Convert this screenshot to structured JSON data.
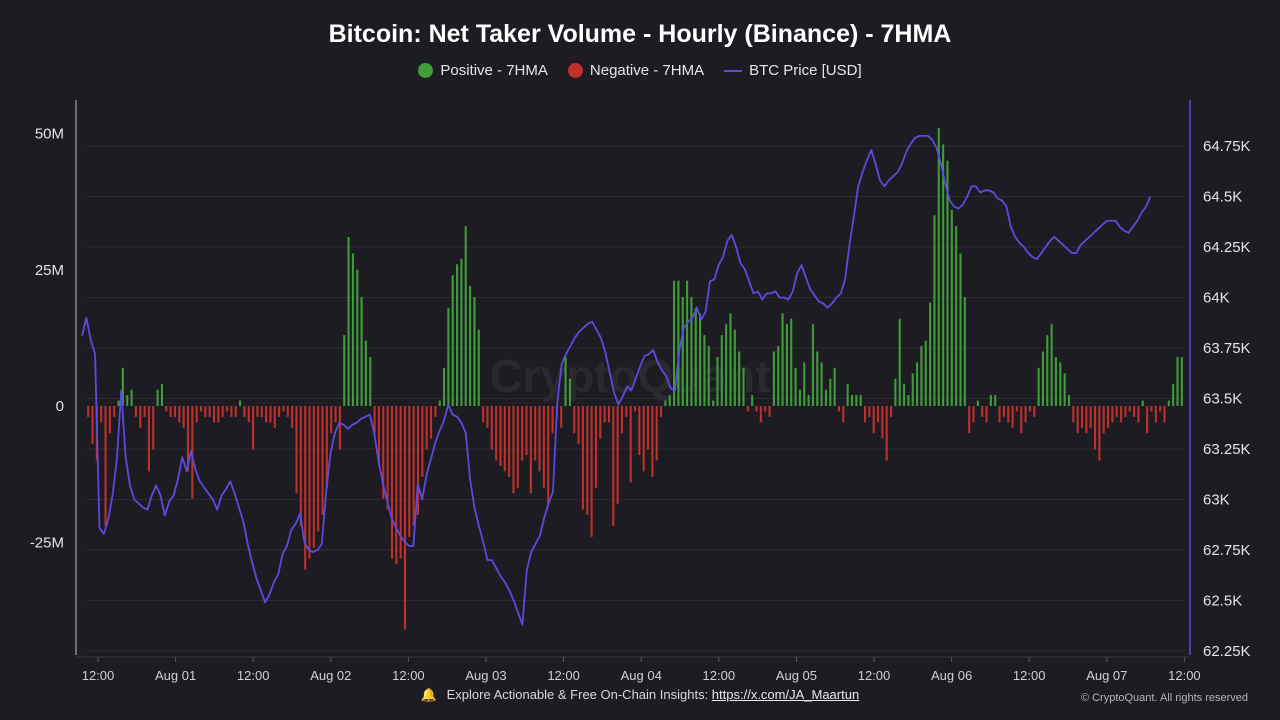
{
  "title": "Bitcoin: Net Taker Volume - Hourly (Binance) - 7HMA",
  "legend": {
    "positive": "Positive - 7HMA",
    "negative": "Negative - 7HMA",
    "price": "BTC Price [USD]"
  },
  "colors": {
    "positive": "#3f9d3a",
    "negative": "#c0302c",
    "price": "#5b4be0",
    "background": "#1d1c22",
    "grid": "#2c2b32"
  },
  "icons": {
    "bell": "bell-icon"
  },
  "footer": {
    "text": "Explore Actionable & Free On-Chain Insights: ",
    "link": "https://x.com/JA_Maartun",
    "copyright": "© CryptoQuant. All rights reserved"
  },
  "watermark": "CryptoQuant",
  "chart_data": {
    "type": "bar",
    "title": "Bitcoin: Net Taker Volume - Hourly (Binance) - 7HMA",
    "x_ticks": [
      "12:00",
      "Aug 01",
      "12:00",
      "Aug 02",
      "12:00",
      "Aug 03",
      "12:00",
      "Aug 04",
      "12:00",
      "Aug 05",
      "12:00",
      "Aug 06",
      "12:00",
      "Aug 07",
      "12:00"
    ],
    "x_range_hours": [
      0,
      171
    ],
    "y_left": {
      "ticks": [
        "50M",
        "25M",
        "0",
        "-25M"
      ],
      "tick_values": [
        50,
        25,
        0,
        -25
      ],
      "unit": "M",
      "range": [
        -45,
        55
      ]
    },
    "y_right": {
      "ticks": [
        "64.75K",
        "64.5K",
        "64.25K",
        "64K",
        "63.75K",
        "63.5K",
        "63.25K",
        "63K",
        "62.75K",
        "62.5K",
        "62.25K"
      ],
      "tick_values": [
        64.75,
        64.5,
        64.25,
        64,
        63.75,
        63.5,
        63.25,
        63,
        62.75,
        62.5,
        62.25
      ],
      "unit": "K USD",
      "range": [
        62.25,
        65.0
      ]
    },
    "grid": true,
    "legend_position": "top-center",
    "series": [
      {
        "name": "Net Taker Volume 7HMA",
        "unit": "M",
        "values": [
          -2,
          -7,
          -10,
          -3,
          -22,
          -5,
          -2,
          1,
          7,
          2,
          3,
          -2,
          -4,
          -2,
          -12,
          -8,
          3,
          4,
          -1,
          -2,
          -2,
          -3,
          -4,
          -12,
          -17,
          -3,
          -1,
          -2,
          -2,
          -3,
          -3,
          -2,
          -1,
          -2,
          -2,
          1,
          -2,
          -3,
          -8,
          -2,
          -2,
          -3,
          -3,
          -4,
          -2,
          -1,
          -2,
          -4,
          -16,
          -22,
          -30,
          -28,
          -26,
          -23,
          -20,
          -15,
          -5,
          -3,
          -8,
          13,
          31,
          28,
          25,
          20,
          12,
          9,
          -5,
          -11,
          -17,
          -19,
          -28,
          -29,
          -28,
          -41,
          -24,
          -22,
          -20,
          -13,
          -8,
          -6,
          -2,
          1,
          7,
          18,
          24,
          26,
          27,
          33,
          22,
          20,
          14,
          -3,
          -4,
          -8,
          -10,
          -11,
          -12,
          -13,
          -16,
          -15,
          -10,
          -9,
          -16,
          -10,
          -12,
          -15,
          -18,
          -5,
          -2,
          -4,
          9,
          5,
          -5,
          -7,
          -19,
          -20,
          -24,
          -15,
          -6,
          -3,
          -3,
          -22,
          -18,
          -5,
          -2,
          -14,
          -1,
          -9,
          -12,
          -8,
          -13,
          -10,
          -2,
          1,
          2,
          23,
          23,
          20,
          23,
          20,
          18,
          17,
          13,
          11,
          1,
          9,
          13,
          15,
          17,
          14,
          10,
          7,
          -1,
          2,
          -1,
          -3,
          -1,
          -2,
          10,
          11,
          17,
          15,
          16,
          7,
          3,
          8,
          2,
          15,
          10,
          8,
          3,
          5,
          7,
          -1,
          -3,
          4,
          2,
          2,
          2,
          -3,
          -2,
          -5,
          -3,
          -6,
          -10,
          -2,
          5,
          16,
          4,
          2,
          6,
          8,
          11,
          12,
          19,
          35,
          51,
          48,
          45,
          36,
          33,
          28,
          20,
          -5,
          -3,
          1,
          -2,
          -3,
          2,
          2,
          -3,
          -2,
          -3,
          -4,
          -1,
          -5,
          -3,
          -1,
          -2,
          7,
          10,
          13,
          15,
          9,
          8,
          6,
          2,
          -3,
          -5,
          -4,
          -5,
          -4,
          -8,
          -10,
          -5,
          -4,
          -3,
          -2,
          -3,
          -2,
          -1,
          -2,
          -3,
          1,
          -5,
          -1,
          -3,
          -1,
          -3,
          1,
          4,
          9,
          9
        ]
      },
      {
        "name": "BTC Price [USD]",
        "unit": "K USD",
        "values": [
          63.81,
          63.9,
          63.79,
          63.72,
          62.86,
          62.83,
          62.9,
          63.02,
          63.2,
          63.54,
          63.21,
          63.07,
          63.0,
          62.98,
          62.96,
          62.95,
          63.02,
          63.07,
          63.02,
          62.92,
          62.99,
          63.02,
          63.1,
          63.21,
          63.14,
          63.24,
          63.15,
          63.09,
          63.06,
          63.03,
          63.0,
          62.95,
          63.02,
          63.05,
          63.09,
          63.03,
          62.96,
          62.89,
          62.78,
          62.69,
          62.61,
          62.55,
          62.49,
          62.53,
          62.59,
          62.63,
          62.73,
          62.77,
          62.85,
          62.88,
          62.93,
          62.79,
          62.75,
          62.74,
          62.75,
          62.78,
          63.04,
          63.23,
          63.33,
          63.38,
          63.37,
          63.35,
          63.37,
          63.38,
          63.4,
          63.41,
          63.42,
          63.33,
          63.19,
          63.08,
          62.99,
          62.91,
          62.86,
          62.82,
          62.79,
          62.77,
          62.77,
          63.08,
          63.0,
          63.12,
          63.2,
          63.28,
          63.34,
          63.39,
          63.47,
          63.42,
          63.41,
          63.38,
          63.33,
          63.1,
          62.96,
          62.87,
          62.79,
          62.7,
          62.7,
          62.66,
          62.62,
          62.59,
          62.55,
          62.5,
          62.44,
          62.38,
          62.65,
          62.74,
          62.78,
          62.82,
          62.91,
          62.98,
          63.04,
          63.48,
          63.67,
          63.72,
          63.76,
          63.8,
          63.83,
          63.85,
          63.87,
          63.88,
          63.84,
          63.8,
          63.73,
          63.63,
          63.53,
          63.47,
          63.51,
          63.56,
          63.54,
          63.6,
          63.66,
          63.71,
          63.72,
          63.74,
          63.68,
          63.64,
          63.61,
          63.55,
          63.54,
          63.74,
          63.85,
          63.88,
          63.9,
          63.95,
          63.89,
          63.93,
          64.08,
          64.09,
          64.16,
          64.2,
          64.28,
          64.31,
          64.25,
          64.17,
          64.14,
          64.08,
          64.02,
          64.03,
          63.99,
          64.02,
          64.02,
          64.03,
          64.0,
          64.0,
          63.99,
          64.03,
          64.12,
          64.16,
          64.1,
          64.04,
          64.01,
          63.98,
          63.97,
          63.95,
          63.97,
          64.0,
          64.02,
          64.09,
          64.26,
          64.4,
          64.55,
          64.62,
          64.68,
          64.73,
          64.66,
          64.58,
          64.55,
          64.58,
          64.6,
          64.62,
          64.66,
          64.72,
          64.76,
          64.79,
          64.8,
          64.8,
          64.8,
          64.78,
          64.74,
          64.66,
          64.56,
          64.48,
          64.45,
          64.44,
          64.46,
          64.5,
          64.55,
          64.55,
          64.52,
          64.53,
          64.53,
          64.52,
          64.49,
          64.48,
          64.45,
          64.35,
          64.3,
          64.27,
          64.25,
          64.22,
          64.2,
          64.19,
          64.22,
          64.25,
          64.28,
          64.3,
          64.28,
          64.26,
          64.24,
          64.22,
          64.22,
          64.26,
          64.28,
          64.3,
          64.32,
          64.34,
          64.36,
          64.38,
          64.38,
          64.38,
          64.35,
          64.33,
          64.32,
          64.35,
          64.38,
          64.42,
          64.45,
          64.5
        ]
      }
    ]
  }
}
